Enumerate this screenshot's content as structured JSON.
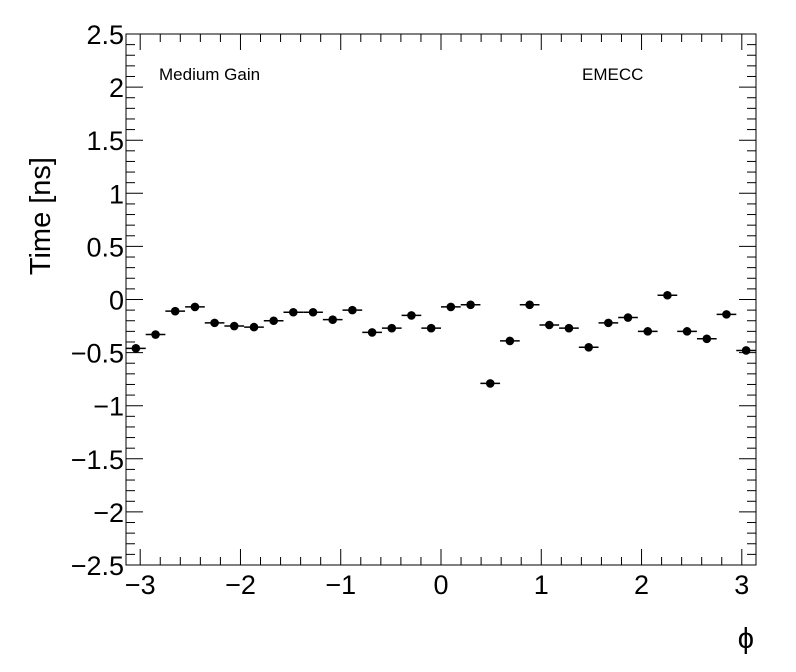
{
  "chart_data": {
    "type": "scatter",
    "ylabel": "Time [ns]",
    "xlabel": "ϕ",
    "annotations": [
      "Medium Gain",
      "EMECC"
    ],
    "xlim": [
      -3.1416,
      3.1416
    ],
    "ylim": [
      -2.5,
      2.5
    ],
    "x_ticks": [
      -3,
      -2,
      -1,
      0,
      1,
      2,
      3
    ],
    "y_ticks": [
      -2.5,
      -2,
      -1.5,
      -1,
      -0.5,
      0,
      0.5,
      1,
      1.5,
      2,
      2.5
    ],
    "x_tick_labels": [
      "−3",
      "−2",
      "−1",
      "0",
      "1",
      "2",
      "3"
    ],
    "y_tick_labels": [
      "−2.5",
      "−2",
      "−1.5",
      "−1",
      "−0.5",
      "0",
      "0.5",
      "1",
      "1.5",
      "2",
      "2.5"
    ],
    "grid": false,
    "marker_color": "#000000",
    "series": [
      {
        "x": [
          -3.043,
          -2.847,
          -2.651,
          -2.454,
          -2.258,
          -2.062,
          -1.865,
          -1.669,
          -1.473,
          -1.276,
          -1.08,
          -0.884,
          -0.687,
          -0.491,
          -0.295,
          -0.098,
          0.098,
          0.295,
          0.491,
          0.687,
          0.884,
          1.08,
          1.276,
          1.473,
          1.669,
          1.865,
          2.062,
          2.258,
          2.454,
          2.651,
          2.847,
          3.043
        ],
        "y": [
          -0.46,
          -0.33,
          -0.11,
          -0.07,
          -0.22,
          -0.25,
          -0.26,
          -0.2,
          -0.12,
          -0.12,
          -0.19,
          -0.1,
          -0.31,
          -0.27,
          -0.15,
          -0.27,
          -0.07,
          -0.05,
          -0.79,
          -0.39,
          -0.05,
          -0.24,
          -0.27,
          -0.45,
          -0.22,
          -0.17,
          -0.3,
          0.04,
          -0.3,
          -0.37,
          -0.14,
          -0.48
        ],
        "x_half_width": 0.0982
      }
    ]
  }
}
